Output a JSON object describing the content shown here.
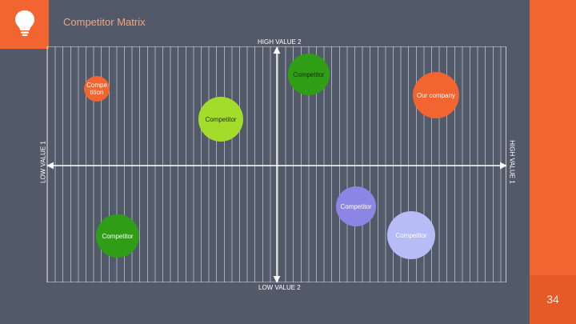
{
  "header": {
    "title": "Competitor Matrix",
    "icon": "lightbulb-icon"
  },
  "axes": {
    "top": "HIGH VALUE 2",
    "bottom": "LOW VALUE 2",
    "left": "LOW VALUE 1",
    "right": "HIGH VALUE 1"
  },
  "bubbles": [
    {
      "label": "Competitor",
      "color": "#2f9e16"
    },
    {
      "label": "Compe tition",
      "color": "#f26430"
    },
    {
      "label": "Our company",
      "color": "#f26430"
    },
    {
      "label": "Competitor",
      "color": "#a4dc2c"
    },
    {
      "label": "Competitor",
      "color": "#8b86e6"
    },
    {
      "label": "Competitor",
      "color": "#2f9e16"
    },
    {
      "label": "Competitor",
      "color": "#b7bbf6"
    }
  ],
  "footer": {
    "page_number": "34"
  },
  "colors": {
    "background": "#525a6a",
    "accent": "#f26430"
  }
}
